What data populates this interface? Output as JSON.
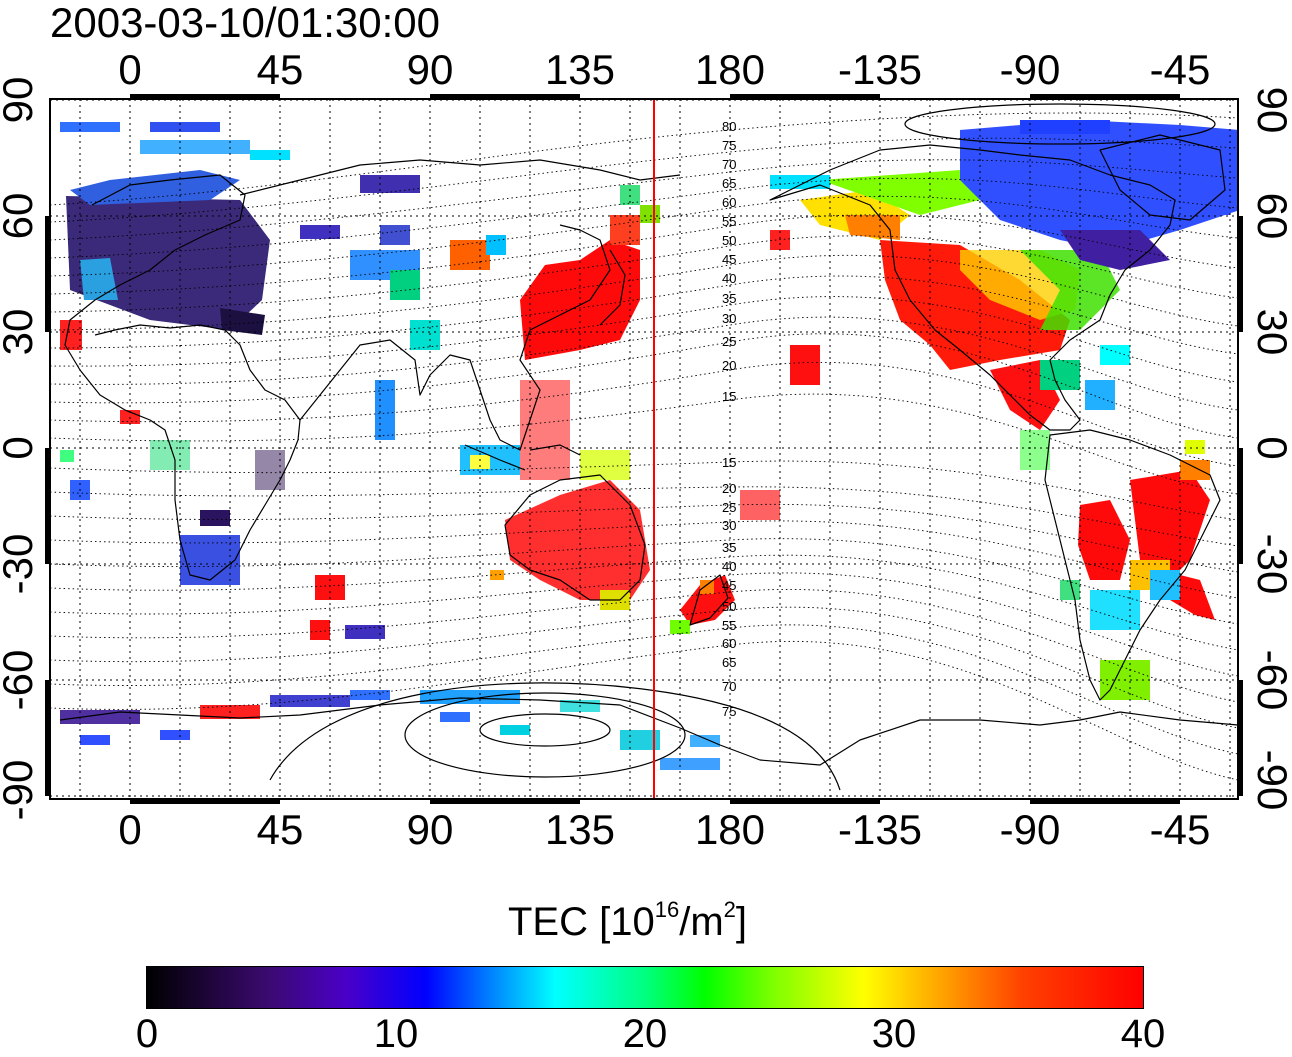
{
  "timestamp": "2003-03-10/01:30:00",
  "map": {
    "top_lon_labels": [
      "0",
      "45",
      "90",
      "135",
      "180",
      "-135",
      "-90",
      "-45"
    ],
    "bottom_lon_labels": [
      "0",
      "45",
      "90",
      "135",
      "180",
      "-135",
      "-90",
      "-45"
    ],
    "left_lat_labels": [
      "90",
      "60",
      "30",
      "0",
      "-30",
      "-60",
      "-90"
    ],
    "right_lat_labels": [
      "90",
      "60",
      "30",
      "0",
      "-30",
      "-60",
      "-90"
    ],
    "contour_labels_north": [
      "80",
      "75",
      "70",
      "65",
      "60",
      "55",
      "50",
      "45",
      "40",
      "35",
      "30",
      "25",
      "20",
      "15"
    ],
    "contour_labels_south": [
      "15",
      "20",
      "25",
      "30",
      "35",
      "40",
      "45",
      "50",
      "55",
      "60",
      "65",
      "70",
      "75"
    ],
    "terminator_color": "#ff0000"
  },
  "colorbar": {
    "title_main": "TEC  [10",
    "title_exp": "16",
    "title_unit": "/m",
    "title_unit_exp": "2",
    "title_close": "]",
    "ticks": [
      "0",
      "10",
      "20",
      "30",
      "40"
    ],
    "min": 0,
    "max": 40
  }
}
